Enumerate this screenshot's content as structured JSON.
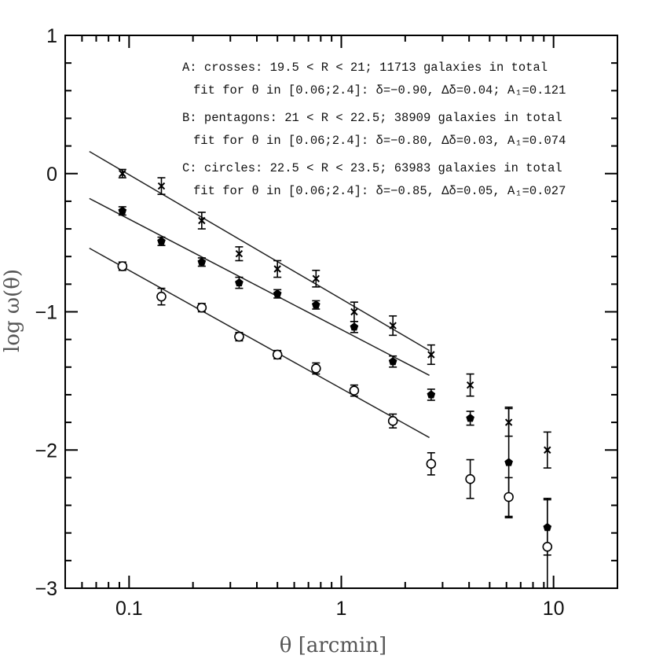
{
  "chart_data": {
    "type": "scatter",
    "xlabel": "θ [arcmin]",
    "ylabel": "log ω(θ)",
    "xscale": "log",
    "xlim": [
      0.05,
      20
    ],
    "ylim": [
      -3,
      1
    ],
    "x_ticks": [
      {
        "value": 0.1,
        "label": "0.1"
      },
      {
        "value": 1,
        "label": "1"
      },
      {
        "value": 10,
        "label": "10"
      }
    ],
    "y_ticks": [
      {
        "value": 1,
        "label": "1"
      },
      {
        "value": 0,
        "label": "0"
      },
      {
        "value": -1,
        "label": "−1"
      },
      {
        "value": -2,
        "label": "−2"
      },
      {
        "value": -3,
        "label": "−3"
      }
    ],
    "legend_lines": [
      "A: crosses: 19.5 < R < 21; 11713 galaxies in total",
      "fit for θ in [0.06;2.4]: δ=−0.90, Δδ=0.04; A₁=0.121",
      "B: pentagons: 21 < R < 22.5; 38909 galaxies in total",
      "fit for θ in [0.06;2.4]: δ=−0.80, Δδ=0.03, A₁=0.074",
      "C: circles: 22.5 < R < 23.5; 63983 galaxies in total",
      "fit for θ in [0.06;2.4]: δ=−0.85, Δδ=0.05, A₁=0.027"
    ],
    "series": [
      {
        "marker": "cross",
        "x": [
          0.093,
          0.142,
          0.22,
          0.33,
          0.5,
          0.76,
          1.15,
          1.75,
          2.65,
          4.05,
          6.15,
          9.35
        ],
        "y": [
          0.0,
          -0.09,
          -0.34,
          -0.58,
          -0.69,
          -0.76,
          -1.0,
          -1.1,
          -1.31,
          -1.53,
          -1.8,
          -2.0
        ],
        "err": [
          0.03,
          0.06,
          0.06,
          0.05,
          0.06,
          0.06,
          0.07,
          0.07,
          0.07,
          0.08,
          0.1,
          0.13
        ]
      },
      {
        "marker": "filled-pentagon",
        "x": [
          0.093,
          0.142,
          0.22,
          0.33,
          0.5,
          0.76,
          1.15,
          1.75,
          2.65,
          4.05,
          6.15,
          9.35
        ],
        "y": [
          -0.27,
          -0.49,
          -0.64,
          -0.79,
          -0.87,
          -0.95,
          -1.11,
          -1.36,
          -1.6,
          -1.77,
          -2.09,
          -2.56
        ],
        "err": [
          0.03,
          0.03,
          0.03,
          0.04,
          0.03,
          0.03,
          0.04,
          0.04,
          0.04,
          0.05,
          0.4,
          0.2
        ]
      },
      {
        "marker": "open-circle",
        "x": [
          0.093,
          0.142,
          0.22,
          0.33,
          0.5,
          0.76,
          1.15,
          1.75,
          2.65,
          4.05,
          6.15,
          9.35
        ],
        "y": [
          -0.67,
          -0.89,
          -0.97,
          -1.18,
          -1.31,
          -1.41,
          -1.57,
          -1.79,
          -2.1,
          -2.21,
          -2.34,
          -2.7
        ],
        "err": [
          0.03,
          0.06,
          0.03,
          0.03,
          0.03,
          0.04,
          0.04,
          0.05,
          0.08,
          0.14,
          0.14,
          0.35
        ]
      }
    ],
    "fit_lines": [
      {
        "x": [
          0.065,
          2.6
        ],
        "y": [
          0.16,
          -1.28
        ]
      },
      {
        "x": [
          0.065,
          2.6
        ],
        "y": [
          -0.18,
          -1.46
        ]
      },
      {
        "x": [
          0.065,
          2.6
        ],
        "y": [
          -0.54,
          -1.91
        ]
      }
    ]
  }
}
